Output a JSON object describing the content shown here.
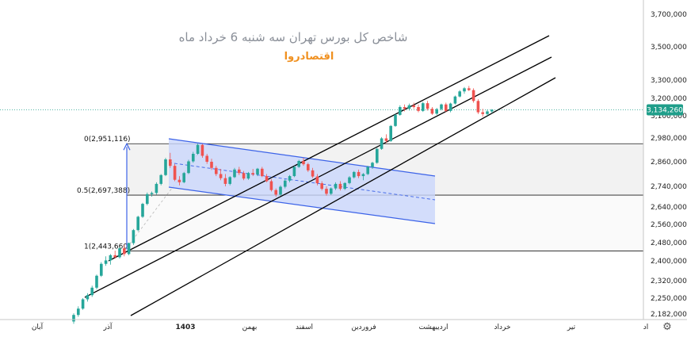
{
  "chart_data": {
    "type": "candlestick",
    "title": "شاخص کل بورس تهران سه شنبه 6 خرداد ماه",
    "subtitle": "اقتصادروا",
    "y_ticks": [
      2182000,
      2250000,
      2320000,
      2400000,
      2480000,
      2560000,
      2640000,
      2740000,
      2860000,
      2980000,
      3100000,
      3200000,
      3300000,
      3500000,
      3700000
    ],
    "y_tick_labels": [
      "2,182,000",
      "2,250,000",
      "2,320,000",
      "2,400,000",
      "2,480,000",
      "2,560,000",
      "2,640,000",
      "2,740,000",
      "2,860,000",
      "2,980,000",
      "3,100,000",
      "3,200,000",
      "3,300,000",
      "3,500,000",
      "3,700,000"
    ],
    "x_labels": [
      "آبان",
      "آذر",
      "1403",
      "بهمن",
      "اسفند",
      "فروردین",
      "اردیبهشت",
      "خرداد",
      "تیر",
      "اد"
    ],
    "current_price": 3134260,
    "current_price_label": "3,134,260",
    "fib_levels": [
      {
        "label": "0(2,951,116)",
        "value": 2951116
      },
      {
        "label": "0.5(2,697,388)",
        "value": 2697388
      },
      {
        "label": "1(2,443,660)",
        "value": 2443660
      }
    ],
    "colors": {
      "up": "#26a69a",
      "down": "#ef5350",
      "channel_fill": "#c9d6fb",
      "channel_line": "#3c63e8",
      "price_tag": "#1f9e8a",
      "fib_arrow": "#3c63e8"
    },
    "candles": [
      {
        "o": 2150000,
        "h": 2185000,
        "l": 2140000,
        "c": 2178000
      },
      {
        "o": 2178000,
        "h": 2215000,
        "l": 2170000,
        "c": 2205000
      },
      {
        "o": 2205000,
        "h": 2250000,
        "l": 2200000,
        "c": 2245000
      },
      {
        "o": 2245000,
        "h": 2270000,
        "l": 2235000,
        "c": 2262000
      },
      {
        "o": 2262000,
        "h": 2300000,
        "l": 2255000,
        "c": 2292000
      },
      {
        "o": 2292000,
        "h": 2345000,
        "l": 2285000,
        "c": 2340000
      },
      {
        "o": 2340000,
        "h": 2395000,
        "l": 2335000,
        "c": 2388000
      },
      {
        "o": 2388000,
        "h": 2420000,
        "l": 2380000,
        "c": 2402000
      },
      {
        "o": 2402000,
        "h": 2430000,
        "l": 2385000,
        "c": 2425000
      },
      {
        "o": 2425000,
        "h": 2445000,
        "l": 2410000,
        "c": 2416000
      },
      {
        "o": 2416000,
        "h": 2460000,
        "l": 2410000,
        "c": 2455000
      },
      {
        "o": 2455000,
        "h": 2470000,
        "l": 2420000,
        "c": 2430000
      },
      {
        "o": 2430000,
        "h": 2480000,
        "l": 2425000,
        "c": 2478000
      },
      {
        "o": 2478000,
        "h": 2540000,
        "l": 2470000,
        "c": 2535000
      },
      {
        "o": 2535000,
        "h": 2600000,
        "l": 2530000,
        "c": 2595000
      },
      {
        "o": 2595000,
        "h": 2660000,
        "l": 2590000,
        "c": 2655000
      },
      {
        "o": 2655000,
        "h": 2710000,
        "l": 2648000,
        "c": 2702000
      },
      {
        "o": 2702000,
        "h": 2715000,
        "l": 2690000,
        "c": 2708000
      },
      {
        "o": 2708000,
        "h": 2760000,
        "l": 2700000,
        "c": 2752000
      },
      {
        "o": 2752000,
        "h": 2800000,
        "l": 2745000,
        "c": 2795000
      },
      {
        "o": 2795000,
        "h": 2880000,
        "l": 2790000,
        "c": 2872000
      },
      {
        "o": 2872000,
        "h": 2905000,
        "l": 2830000,
        "c": 2840000
      },
      {
        "o": 2840000,
        "h": 2850000,
        "l": 2765000,
        "c": 2772000
      },
      {
        "o": 2772000,
        "h": 2790000,
        "l": 2745000,
        "c": 2760000
      },
      {
        "o": 2760000,
        "h": 2810000,
        "l": 2755000,
        "c": 2805000
      },
      {
        "o": 2805000,
        "h": 2870000,
        "l": 2800000,
        "c": 2862000
      },
      {
        "o": 2862000,
        "h": 2910000,
        "l": 2855000,
        "c": 2900000
      },
      {
        "o": 2900000,
        "h": 2952000,
        "l": 2895000,
        "c": 2945000
      },
      {
        "o": 2945000,
        "h": 2950000,
        "l": 2880000,
        "c": 2890000
      },
      {
        "o": 2890000,
        "h": 2900000,
        "l": 2850000,
        "c": 2860000
      },
      {
        "o": 2860000,
        "h": 2875000,
        "l": 2820000,
        "c": 2830000
      },
      {
        "o": 2830000,
        "h": 2840000,
        "l": 2790000,
        "c": 2800000
      },
      {
        "o": 2800000,
        "h": 2825000,
        "l": 2770000,
        "c": 2780000
      },
      {
        "o": 2780000,
        "h": 2800000,
        "l": 2740000,
        "c": 2752000
      },
      {
        "o": 2752000,
        "h": 2790000,
        "l": 2745000,
        "c": 2785000
      },
      {
        "o": 2785000,
        "h": 2830000,
        "l": 2780000,
        "c": 2822000
      },
      {
        "o": 2822000,
        "h": 2835000,
        "l": 2795000,
        "c": 2805000
      },
      {
        "o": 2805000,
        "h": 2815000,
        "l": 2770000,
        "c": 2778000
      },
      {
        "o": 2778000,
        "h": 2810000,
        "l": 2772000,
        "c": 2805000
      },
      {
        "o": 2805000,
        "h": 2825000,
        "l": 2790000,
        "c": 2798000
      },
      {
        "o": 2798000,
        "h": 2830000,
        "l": 2790000,
        "c": 2826000
      },
      {
        "o": 2826000,
        "h": 2835000,
        "l": 2785000,
        "c": 2790000
      },
      {
        "o": 2790000,
        "h": 2800000,
        "l": 2760000,
        "c": 2765000
      },
      {
        "o": 2765000,
        "h": 2775000,
        "l": 2715000,
        "c": 2722000
      },
      {
        "o": 2722000,
        "h": 2730000,
        "l": 2690000,
        "c": 2700000
      },
      {
        "o": 2700000,
        "h": 2745000,
        "l": 2695000,
        "c": 2738000
      },
      {
        "o": 2738000,
        "h": 2775000,
        "l": 2730000,
        "c": 2768000
      },
      {
        "o": 2768000,
        "h": 2795000,
        "l": 2760000,
        "c": 2790000
      },
      {
        "o": 2790000,
        "h": 2840000,
        "l": 2785000,
        "c": 2835000
      },
      {
        "o": 2835000,
        "h": 2870000,
        "l": 2830000,
        "c": 2864000
      },
      {
        "o": 2864000,
        "h": 2880000,
        "l": 2840000,
        "c": 2848000
      },
      {
        "o": 2848000,
        "h": 2855000,
        "l": 2810000,
        "c": 2818000
      },
      {
        "o": 2818000,
        "h": 2830000,
        "l": 2780000,
        "c": 2788000
      },
      {
        "o": 2788000,
        "h": 2800000,
        "l": 2745000,
        "c": 2755000
      },
      {
        "o": 2755000,
        "h": 2765000,
        "l": 2720000,
        "c": 2728000
      },
      {
        "o": 2728000,
        "h": 2740000,
        "l": 2695000,
        "c": 2704000
      },
      {
        "o": 2704000,
        "h": 2735000,
        "l": 2698000,
        "c": 2730000
      },
      {
        "o": 2730000,
        "h": 2760000,
        "l": 2722000,
        "c": 2752000
      },
      {
        "o": 2752000,
        "h": 2765000,
        "l": 2720000,
        "c": 2728000
      },
      {
        "o": 2728000,
        "h": 2760000,
        "l": 2722000,
        "c": 2756000
      },
      {
        "o": 2756000,
        "h": 2790000,
        "l": 2750000,
        "c": 2784000
      },
      {
        "o": 2784000,
        "h": 2815000,
        "l": 2778000,
        "c": 2810000
      },
      {
        "o": 2810000,
        "h": 2822000,
        "l": 2780000,
        "c": 2790000
      },
      {
        "o": 2790000,
        "h": 2805000,
        "l": 2770000,
        "c": 2800000
      },
      {
        "o": 2800000,
        "h": 2840000,
        "l": 2795000,
        "c": 2835000
      },
      {
        "o": 2835000,
        "h": 2860000,
        "l": 2825000,
        "c": 2855000
      },
      {
        "o": 2855000,
        "h": 2930000,
        "l": 2850000,
        "c": 2925000
      },
      {
        "o": 2925000,
        "h": 2985000,
        "l": 2920000,
        "c": 2978000
      },
      {
        "o": 2978000,
        "h": 3000000,
        "l": 2955000,
        "c": 2965000
      },
      {
        "o": 2965000,
        "h": 3050000,
        "l": 2960000,
        "c": 3045000
      },
      {
        "o": 3045000,
        "h": 3110000,
        "l": 3040000,
        "c": 3105000
      },
      {
        "o": 3105000,
        "h": 3160000,
        "l": 3100000,
        "c": 3150000
      },
      {
        "o": 3150000,
        "h": 3165000,
        "l": 3125000,
        "c": 3140000
      },
      {
        "o": 3140000,
        "h": 3170000,
        "l": 3130000,
        "c": 3160000
      },
      {
        "o": 3160000,
        "h": 3175000,
        "l": 3140000,
        "c": 3150000
      },
      {
        "o": 3150000,
        "h": 3165000,
        "l": 3120000,
        "c": 3128000
      },
      {
        "o": 3128000,
        "h": 3180000,
        "l": 3122000,
        "c": 3172000
      },
      {
        "o": 3172000,
        "h": 3185000,
        "l": 3130000,
        "c": 3140000
      },
      {
        "o": 3140000,
        "h": 3150000,
        "l": 3105000,
        "c": 3112000
      },
      {
        "o": 3112000,
        "h": 3145000,
        "l": 3105000,
        "c": 3138000
      },
      {
        "o": 3138000,
        "h": 3170000,
        "l": 3130000,
        "c": 3165000
      },
      {
        "o": 3165000,
        "h": 3175000,
        "l": 3120000,
        "c": 3128000
      },
      {
        "o": 3128000,
        "h": 3175000,
        "l": 3120000,
        "c": 3170000
      },
      {
        "o": 3170000,
        "h": 3215000,
        "l": 3165000,
        "c": 3210000
      },
      {
        "o": 3210000,
        "h": 3245000,
        "l": 3205000,
        "c": 3238000
      },
      {
        "o": 3238000,
        "h": 3262000,
        "l": 3225000,
        "c": 3255000
      },
      {
        "o": 3255000,
        "h": 3268000,
        "l": 3240000,
        "c": 3245000
      },
      {
        "o": 3245000,
        "h": 3255000,
        "l": 3175000,
        "c": 3185000
      },
      {
        "o": 3185000,
        "h": 3195000,
        "l": 3110000,
        "c": 3120000
      },
      {
        "o": 3120000,
        "h": 3140000,
        "l": 3095000,
        "c": 3110000
      },
      {
        "o": 3110000,
        "h": 3135000,
        "l": 3100000,
        "c": 3125000
      },
      {
        "o": 3125000,
        "h": 3138000,
        "l": 3115000,
        "c": 3134260
      }
    ]
  }
}
